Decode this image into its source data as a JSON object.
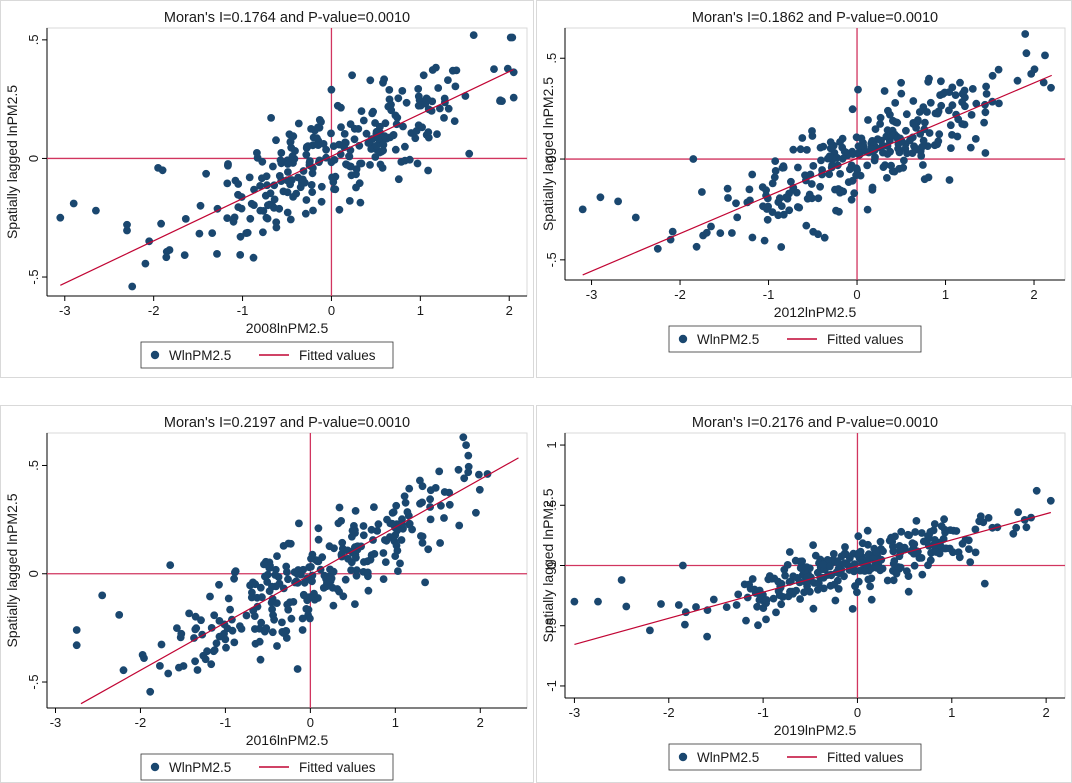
{
  "colors": {
    "point": "#1a476f",
    "fit": "#c10534",
    "zero": "#d1355f",
    "frame": "#d9d9d9",
    "axis": "#000000"
  },
  "chart_data": [
    {
      "type": "scatter",
      "title": "Moran's I=0.1764 and P-value=0.0010",
      "xlabel": "2008lnPM2.5",
      "ylabel": "Spatially lagged lnPM2.5",
      "xlim": [
        -3.2,
        2.2
      ],
      "ylim": [
        -0.58,
        0.55
      ],
      "xticks": [
        -3,
        -2,
        -1,
        0,
        1,
        2
      ],
      "xtick_labels": [
        "-3",
        "-2",
        "-1",
        "0",
        "1",
        "2"
      ],
      "yticks": [
        -0.5,
        0,
        0.5
      ],
      "ytick_labels": [
        "-.5",
        "0",
        ".5"
      ],
      "fit": {
        "x": [
          -3.05,
          2.05
        ],
        "y": [
          -0.535,
          0.375
        ]
      },
      "n_points": 280,
      "slope": 0.1764,
      "seed": 11,
      "outliers": [
        [
          -3.05,
          -0.25
        ],
        [
          -2.9,
          -0.19
        ],
        [
          -2.65,
          -0.22
        ],
        [
          -2.3,
          -0.28
        ],
        [
          -1.95,
          -0.04
        ],
        [
          -1.9,
          -0.05
        ],
        [
          1.6,
          0.52
        ],
        [
          1.55,
          0.02
        ],
        [
          0.0,
          0.29
        ]
      ],
      "legend": [
        "WlnPM2.5",
        "Fitted values"
      ]
    },
    {
      "type": "scatter",
      "title": "Moran's I=0.1862 and P-value=0.0010",
      "xlabel": "2012lnPM2.5",
      "ylabel": "Spatially lagged lnPM2.5",
      "xlim": [
        -3.3,
        2.35
      ],
      "ylim": [
        -0.6,
        0.65
      ],
      "xticks": [
        -3,
        -2,
        -1,
        0,
        1,
        2
      ],
      "xtick_labels": [
        "-3",
        "-2",
        "-1",
        "0",
        "1",
        "2"
      ],
      "yticks": [
        -0.5,
        0,
        0.5
      ],
      "ytick_labels": [
        "-.5",
        "0",
        ".5"
      ],
      "fit": {
        "x": [
          -3.1,
          2.2
        ],
        "y": [
          -0.575,
          0.415
        ]
      },
      "n_points": 280,
      "slope": 0.1862,
      "seed": 23,
      "outliers": [
        [
          -3.1,
          -0.25
        ],
        [
          -2.9,
          -0.19
        ],
        [
          -2.7,
          -0.21
        ],
        [
          -2.5,
          -0.29
        ],
        [
          -1.85,
          0.0
        ],
        [
          1.9,
          0.62
        ],
        [
          1.45,
          0.03
        ]
      ],
      "legend": [
        "WlnPM2.5",
        "Fitted values"
      ]
    },
    {
      "type": "scatter",
      "title": "Moran's I=0.2197 and P-value=0.0010",
      "xlabel": "2016lnPM2.5",
      "ylabel": "Spatially lagged lnPM2.5",
      "xlim": [
        -3.1,
        2.55
      ],
      "ylim": [
        -0.62,
        0.65
      ],
      "xticks": [
        -3,
        -2,
        -1,
        0,
        1,
        2
      ],
      "xtick_labels": [
        "-3",
        "-2",
        "-1",
        "0",
        "1",
        "2"
      ],
      "yticks": [
        -0.5,
        0,
        0.5
      ],
      "ytick_labels": [
        "-.5",
        "0",
        ".5"
      ],
      "fit": {
        "x": [
          -2.7,
          2.45
        ],
        "y": [
          -0.6,
          0.535
        ]
      },
      "n_points": 280,
      "slope": 0.2197,
      "seed": 37,
      "outliers": [
        [
          -2.75,
          -0.26
        ],
        [
          -2.75,
          -0.33
        ],
        [
          -2.45,
          -0.1
        ],
        [
          -2.25,
          -0.19
        ],
        [
          -1.65,
          0.04
        ],
        [
          1.8,
          0.63
        ],
        [
          1.35,
          -0.04
        ],
        [
          -0.15,
          -0.44
        ]
      ],
      "legend": [
        "WlnPM2.5",
        "Fitted values"
      ]
    },
    {
      "type": "scatter",
      "title": "Moran's I=0.2176 and P-value=0.0010",
      "xlabel": "2019lnPM2.5",
      "ylabel": "Spatially lagged lnPM2.5",
      "xlim": [
        -3.1,
        2.2
      ],
      "ylim": [
        -1.1,
        1.1
      ],
      "xticks": [
        -3,
        -2,
        -1,
        0,
        1,
        2
      ],
      "xtick_labels": [
        "-3",
        "-2",
        "-1",
        "0",
        "1",
        "2"
      ],
      "yticks": [
        -1,
        -0.5,
        0,
        0.5,
        1
      ],
      "ytick_labels": [
        "-1",
        "-.5",
        "0",
        ".5",
        "1"
      ],
      "fit": {
        "x": [
          -3.0,
          2.05
        ],
        "y": [
          -0.655,
          0.44
        ]
      },
      "n_points": 290,
      "slope": 0.2176,
      "seed": 53,
      "outliers": [
        [
          -3.0,
          -0.3
        ],
        [
          -2.75,
          -0.3
        ],
        [
          -2.5,
          -0.12
        ],
        [
          -2.45,
          -0.34
        ],
        [
          -1.85,
          0.0
        ],
        [
          1.9,
          0.62
        ],
        [
          1.35,
          -0.15
        ],
        [
          -0.05,
          -0.36
        ]
      ],
      "legend": [
        "WlnPM2.5",
        "Fitted values"
      ]
    }
  ]
}
